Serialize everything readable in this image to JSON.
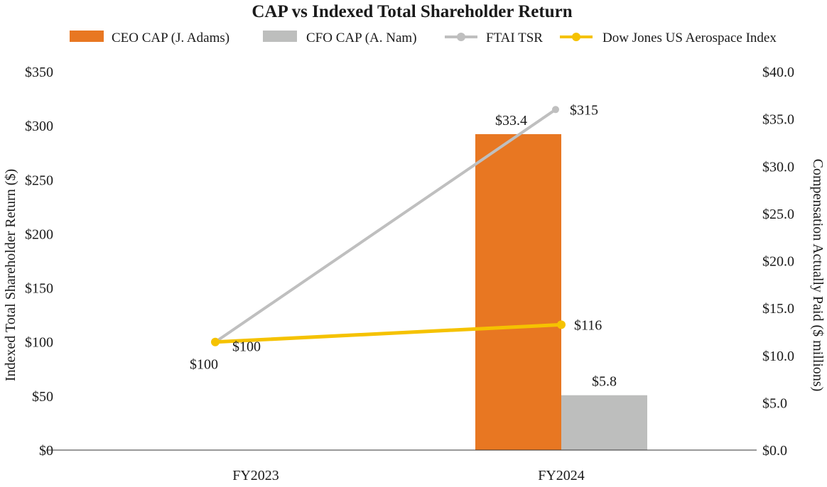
{
  "chart_data": {
    "type": "bar",
    "title": "CAP vs Indexed Total Shareholder Return",
    "categories": [
      "FY2023",
      "FY2024"
    ],
    "y_left": {
      "label": "Indexed Total Shareholder Return ($)",
      "lim": [
        0,
        350
      ],
      "ticks": [
        0,
        50,
        100,
        150,
        200,
        250,
        300,
        350
      ],
      "tick_labels": [
        "$0",
        "$50",
        "$100",
        "$150",
        "$200",
        "$250",
        "$300",
        "$350"
      ]
    },
    "y_right": {
      "label": "Compensation Actually Paid ($ millions)",
      "lim": [
        0,
        40
      ],
      "ticks": [
        0,
        5,
        10,
        15,
        20,
        25,
        30,
        35,
        40
      ],
      "tick_labels": [
        "$0.0",
        "$5.0",
        "$10.0",
        "$15.0",
        "$20.0",
        "$25.0",
        "$30.0",
        "$35.0",
        "$40.0"
      ]
    },
    "bars": [
      {
        "name": "CEO CAP (J. Adams)",
        "color": "#E87722",
        "axis": "right",
        "values": [
          null,
          33.4
        ],
        "labels": [
          "",
          "$33.4"
        ]
      },
      {
        "name": "CFO CAP (A. Nam)",
        "color": "#BDBEBD",
        "axis": "right",
        "values": [
          null,
          5.8
        ],
        "labels": [
          "",
          "$5.8"
        ]
      }
    ],
    "lines": [
      {
        "name": "FTAI TSR",
        "color": "#BFBFBF",
        "axis": "left",
        "values": [
          100,
          315
        ],
        "labels": [
          "$100",
          "$315"
        ]
      },
      {
        "name": "Dow Jones US Aerospace Index",
        "color": "#F5C200",
        "axis": "left",
        "values": [
          100,
          116
        ],
        "labels": [
          "$100",
          "$116"
        ]
      }
    ],
    "legend_position": "top",
    "grid": false
  }
}
